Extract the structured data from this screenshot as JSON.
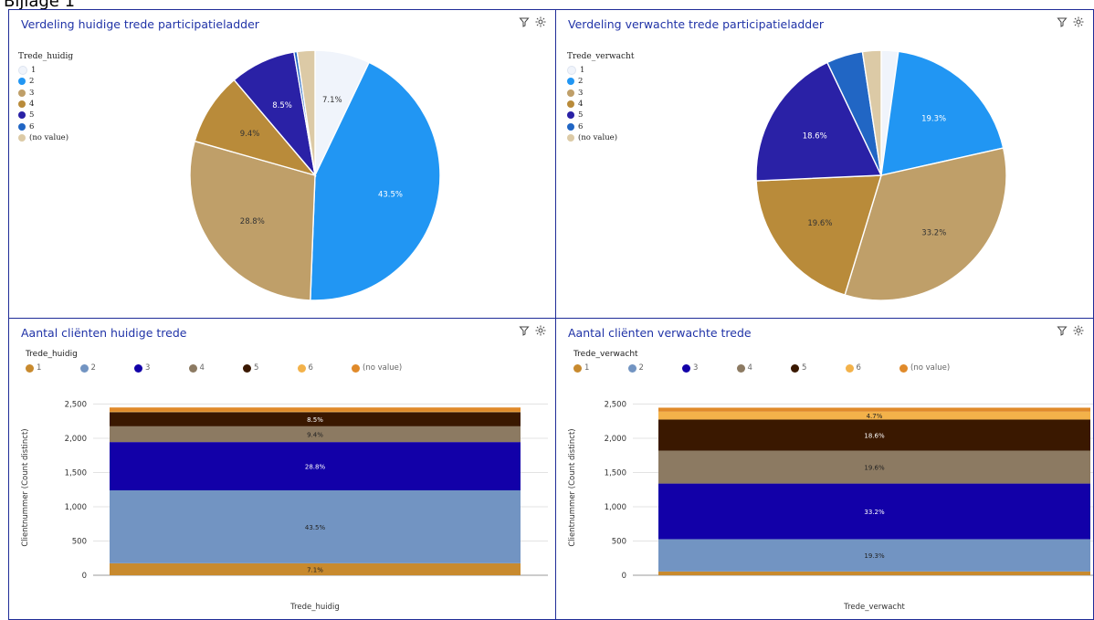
{
  "page": {
    "header": "Bijlage 1"
  },
  "panels": {
    "pie_current": {
      "title": "Verdeling huidige trede participatieladder",
      "legend_title": "Trede_huidig",
      "legend": [
        "1",
        "2",
        "3",
        "4",
        "5",
        "6",
        "(no value)"
      ]
    },
    "pie_expected": {
      "title": "Verdeling verwachte trede participatieladder",
      "legend_title": "Trede_verwacht",
      "legend": [
        "1",
        "2",
        "3",
        "4",
        "5",
        "6",
        "(no value)"
      ]
    },
    "bar_current": {
      "title": "Aantal cliënten huidige trede",
      "legend_title": "Trede_huidig",
      "legend": [
        "1",
        "2",
        "3",
        "4",
        "5",
        "6",
        "(no value)"
      ],
      "ylabel": "Clientnummer (Count distinct)",
      "xlabel": "Trede_huidig"
    },
    "bar_expected": {
      "title": "Aantal cliënten verwachte trede",
      "legend_title": "Trede_verwacht",
      "legend": [
        "1",
        "2",
        "3",
        "4",
        "5",
        "6",
        "(no value)"
      ],
      "ylabel": "Clientnummer (Count distinct)",
      "xlabel": "Trede_verwacht"
    }
  },
  "colors": {
    "pie": [
      "#f0f4fb",
      "#2196f3",
      "#bf9f69",
      "#b98b3a",
      "#2a21a6",
      "#2166c4",
      "#dccaa6"
    ],
    "bar": [
      "#c88a2e",
      "#7294c2",
      "#1200a8",
      "#8c7a62",
      "#3a1800",
      "#f3b24a",
      "#e08a2a"
    ]
  },
  "chart_data": [
    {
      "type": "pie",
      "categories": [
        "1",
        "2",
        "3",
        "4",
        "5",
        "6",
        "(no value)"
      ],
      "values": [
        7.1,
        43.5,
        28.8,
        9.4,
        8.5,
        0.4,
        2.3
      ],
      "labels": [
        "7.1%",
        "43.5%",
        "28.8%",
        "9.4%",
        "8.5%",
        "",
        ""
      ]
    },
    {
      "type": "pie",
      "categories": [
        "1",
        "2",
        "3",
        "4",
        "5",
        "6",
        "(no value)"
      ],
      "values": [
        2.2,
        19.3,
        33.2,
        19.6,
        18.6,
        4.7,
        2.4
      ],
      "labels": [
        "",
        "19.3%",
        "33.2%",
        "19.6%",
        "18.6%",
        "",
        ""
      ]
    },
    {
      "type": "bar",
      "stacked": true,
      "categories": [
        "1",
        "2",
        "3",
        "4",
        "5",
        "6",
        "(no value)"
      ],
      "values": [
        175,
        1065,
        705,
        230,
        208,
        10,
        57
      ],
      "labels": [
        "7.1%",
        "43.5%",
        "28.8%",
        "9.4%",
        "8.5%",
        "",
        ""
      ],
      "yticks": [
        "0",
        "500",
        "1,000",
        "1,500",
        "2,000",
        "2,500"
      ],
      "ylim": [
        0,
        2560
      ]
    },
    {
      "type": "bar",
      "stacked": true,
      "categories": [
        "1",
        "2",
        "3",
        "4",
        "5",
        "6",
        "(no value)"
      ],
      "values": [
        55,
        472,
        812,
        480,
        455,
        115,
        58
      ],
      "labels": [
        "",
        "19.3%",
        "33.2%",
        "19.6%",
        "18.6%",
        "4.7%",
        ""
      ],
      "yticks": [
        "0",
        "500",
        "1,000",
        "1,500",
        "2,000",
        "2,500"
      ],
      "ylim": [
        0,
        2560
      ]
    }
  ]
}
